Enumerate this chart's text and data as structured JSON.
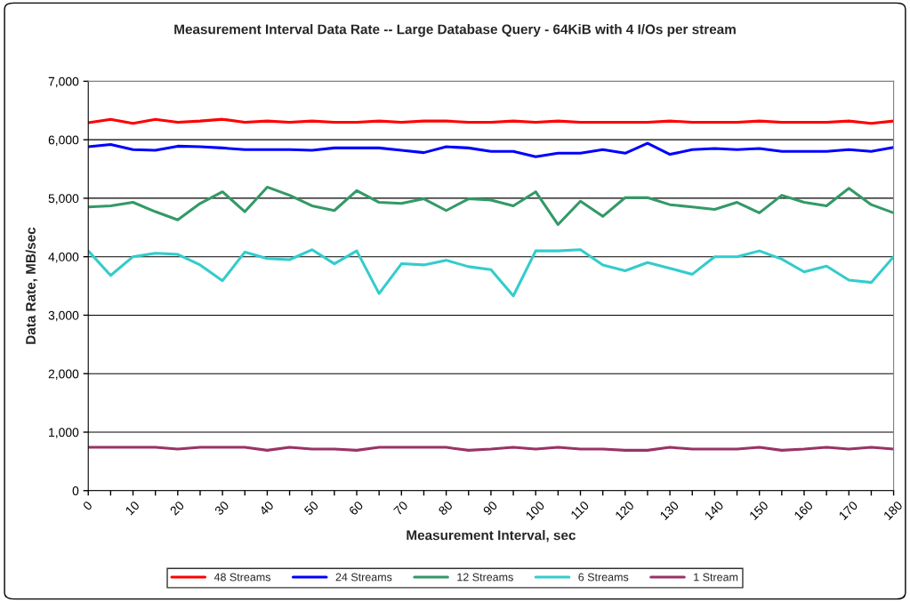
{
  "chart_data": {
    "type": "line",
    "title": "Measurement Interval Data Rate -- Large Database Query - 64KiB with 4 I/Os per stream",
    "xlabel": "Measurement Interval, sec",
    "ylabel": "Data Rate, MB/sec",
    "x": [
      0,
      5,
      10,
      15,
      20,
      25,
      30,
      35,
      40,
      45,
      50,
      55,
      60,
      65,
      70,
      75,
      80,
      85,
      90,
      95,
      100,
      105,
      110,
      115,
      120,
      125,
      130,
      135,
      140,
      145,
      150,
      155,
      160,
      165,
      170,
      175,
      180
    ],
    "xlim": [
      0,
      180
    ],
    "xticks": [
      0,
      {
        "value": 5,
        "label": null
      },
      10,
      {
        "value": 15,
        "label": null
      },
      20,
      {
        "value": 25,
        "label": null
      },
      30,
      {
        "value": 35,
        "label": null
      },
      40,
      {
        "value": 45,
        "label": null
      },
      50,
      {
        "value": 55,
        "label": null
      },
      60,
      {
        "value": 65,
        "label": null
      },
      70,
      {
        "value": 75,
        "label": null
      },
      80,
      {
        "value": 85,
        "label": null
      },
      90,
      {
        "value": 95,
        "label": null
      },
      100,
      {
        "value": 105,
        "label": null
      },
      110,
      {
        "value": 115,
        "label": null
      },
      120,
      {
        "value": 125,
        "label": null
      },
      130,
      {
        "value": 135,
        "label": null
      },
      140,
      {
        "value": 145,
        "label": null
      },
      150,
      {
        "value": 155,
        "label": null
      },
      160,
      {
        "value": 165,
        "label": null
      },
      170,
      {
        "value": 175,
        "label": null
      },
      180
    ],
    "ylim": [
      0,
      7000
    ],
    "yticks": [
      {
        "value": 0,
        "label": "0"
      },
      {
        "value": 1000,
        "label": "1,000"
      },
      {
        "value": 2000,
        "label": "2,000"
      },
      {
        "value": 3000,
        "label": "3,000"
      },
      {
        "value": 4000,
        "label": "4,000"
      },
      {
        "value": 5000,
        "label": "5,000"
      },
      {
        "value": 6000,
        "label": "6,000"
      },
      {
        "value": 7000,
        "label": "7,000"
      }
    ],
    "grid": "y",
    "legend": "bottom",
    "marker": "none",
    "line_style": "solid",
    "series": [
      {
        "name": "48 Streams",
        "color": "#ff0000",
        "values": [
          6290,
          6350,
          6280,
          6350,
          6300,
          6320,
          6350,
          6300,
          6320,
          6300,
          6320,
          6300,
          6300,
          6320,
          6300,
          6320,
          6320,
          6300,
          6300,
          6320,
          6300,
          6320,
          6300,
          6300,
          6300,
          6300,
          6320,
          6300,
          6300,
          6300,
          6320,
          6300,
          6300,
          6300,
          6320,
          6280,
          6320
        ]
      },
      {
        "name": "24 Streams",
        "color": "#0000ff",
        "values": [
          5880,
          5920,
          5830,
          5820,
          5890,
          5880,
          5860,
          5830,
          5830,
          5830,
          5820,
          5860,
          5860,
          5860,
          5820,
          5780,
          5880,
          5860,
          5800,
          5800,
          5710,
          5770,
          5770,
          5830,
          5770,
          5940,
          5750,
          5830,
          5850,
          5830,
          5850,
          5800,
          5800,
          5800,
          5830,
          5800,
          5870
        ]
      },
      {
        "name": "12 Streams",
        "color": "#339966",
        "values": [
          4850,
          4870,
          4930,
          4770,
          4630,
          4910,
          5110,
          4770,
          5190,
          5050,
          4870,
          4790,
          5130,
          4930,
          4910,
          4990,
          4790,
          4990,
          4970,
          4870,
          5110,
          4550,
          4950,
          4690,
          5010,
          5010,
          4890,
          4850,
          4810,
          4930,
          4750,
          5050,
          4930,
          4870,
          5170,
          4890,
          4750
        ]
      },
      {
        "name": "6 Streams",
        "color": "#33cccc",
        "values": [
          4100,
          3680,
          4000,
          4060,
          4040,
          3860,
          3590,
          4080,
          3970,
          3950,
          4120,
          3880,
          4100,
          3370,
          3880,
          3860,
          3940,
          3830,
          3780,
          3330,
          4100,
          4100,
          4120,
          3860,
          3760,
          3900,
          3800,
          3700,
          4000,
          4000,
          4100,
          3960,
          3740,
          3840,
          3600,
          3560,
          4000
        ]
      },
      {
        "name": "1 Stream",
        "color": "#993366",
        "values": [
          740,
          740,
          740,
          740,
          710,
          740,
          740,
          740,
          690,
          740,
          710,
          710,
          690,
          740,
          740,
          740,
          740,
          690,
          710,
          740,
          710,
          740,
          710,
          710,
          690,
          690,
          740,
          710,
          710,
          710,
          740,
          690,
          710,
          740,
          710,
          740,
          710
        ]
      }
    ]
  }
}
